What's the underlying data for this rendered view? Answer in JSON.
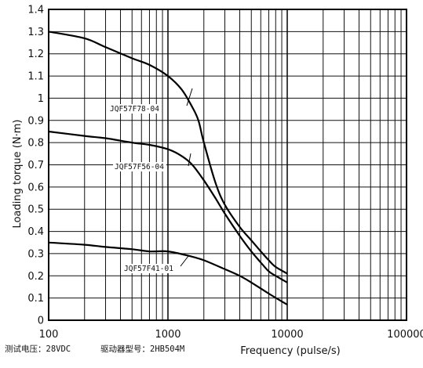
{
  "chart_data": {
    "type": "line",
    "xlabel": "Frequency (pulse/s)",
    "ylabel": "Loading torque (N·m)",
    "x_scale": "log",
    "xlim": [
      100,
      100000
    ],
    "ylim": [
      0,
      1.4
    ],
    "x_ticks": [
      100,
      1000,
      10000,
      100000
    ],
    "x_tick_labels": [
      "100",
      "1000",
      "10000",
      "100000"
    ],
    "y_ticks": [
      0,
      0.1,
      0.2,
      0.3,
      0.4,
      0.5,
      0.6,
      0.7,
      0.8,
      0.9,
      1,
      1.1,
      1.2,
      1.3,
      1.4
    ],
    "y_tick_labels": [
      "0",
      "0.1",
      "0.2",
      "0.3",
      "0.4",
      "0.5",
      "0.6",
      "0.7",
      "0.8",
      "0.9",
      "1",
      "1.1",
      "1.2",
      "1.3",
      "1.4"
    ],
    "grid": true,
    "series": [
      {
        "name": "JQF57F78-04",
        "x": [
          100,
          200,
          300,
          500,
          700,
          1000,
          1300,
          1600,
          1800,
          2000,
          2500,
          3000,
          4000,
          5000,
          6000,
          7000,
          8000,
          10000
        ],
        "values": [
          1.3,
          1.27,
          1.23,
          1.18,
          1.15,
          1.1,
          1.04,
          0.96,
          0.9,
          0.8,
          0.62,
          0.52,
          0.42,
          0.36,
          0.31,
          0.27,
          0.24,
          0.21
        ]
      },
      {
        "name": "JQF57F56-04",
        "x": [
          100,
          200,
          300,
          500,
          700,
          1000,
          1300,
          1600,
          2000,
          2500,
          3000,
          4000,
          5000,
          6000,
          7000,
          8000,
          10000
        ],
        "values": [
          0.85,
          0.83,
          0.82,
          0.8,
          0.79,
          0.77,
          0.74,
          0.7,
          0.63,
          0.55,
          0.48,
          0.38,
          0.31,
          0.26,
          0.22,
          0.2,
          0.17
        ]
      },
      {
        "name": "JQF57F41-01",
        "x": [
          100,
          200,
          300,
          500,
          700,
          1000,
          1500,
          2000,
          3000,
          4000,
          5000,
          7000,
          10000
        ],
        "values": [
          0.35,
          0.34,
          0.33,
          0.32,
          0.31,
          0.31,
          0.29,
          0.27,
          0.23,
          0.2,
          0.17,
          0.12,
          0.07
        ]
      }
    ],
    "annotations": [
      {
        "text": "JQF57F78-04",
        "series": 0
      },
      {
        "text": "JQF57F56-04",
        "series": 1
      },
      {
        "text": "JQF57F41-01",
        "series": 2
      }
    ]
  },
  "notes": {
    "voltage": "测试电压：28VDC",
    "driver": "驱动器型号：2HB504M"
  }
}
